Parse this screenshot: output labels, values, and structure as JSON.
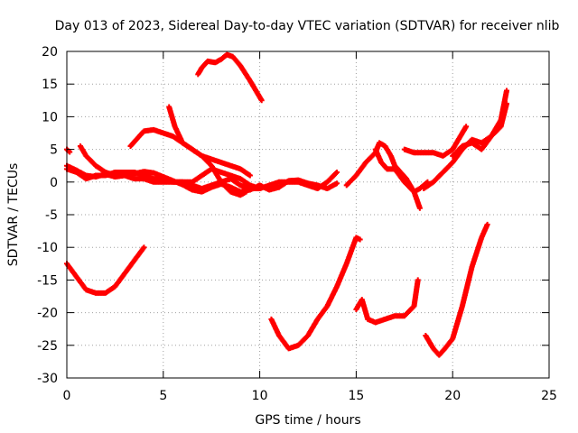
{
  "chart_data": {
    "type": "scatter",
    "title": "Day 013 of 2023, Sidereal Day-to-day VTEC variation (SDTVAR) for receiver nlib",
    "xlabel": "GPS time / hours",
    "ylabel": "SDTVAR / TECUs",
    "xlim": [
      0,
      25
    ],
    "ylim": [
      -30,
      20
    ],
    "x_ticks": [
      0,
      5,
      10,
      15,
      20,
      25
    ],
    "y_ticks": [
      -30,
      -25,
      -20,
      -15,
      -10,
      -5,
      0,
      5,
      10,
      15,
      20
    ],
    "grid": true,
    "marker": "+",
    "color": "#ff0000",
    "series": [
      {
        "x": [
          0.0,
          0.5,
          1.0,
          1.5,
          2.0,
          2.5,
          3.0,
          3.5,
          4.0,
          4.5,
          5.0,
          5.5,
          6.0,
          6.5,
          7.0,
          7.5,
          8.0,
          8.5,
          9.0,
          9.5,
          10.0,
          10.5,
          11.0,
          11.5,
          12.0,
          12.5,
          13.0,
          13.5,
          14.0
        ],
        "y": [
          2.0,
          1.5,
          0.5,
          1.0,
          1.0,
          1.5,
          1.5,
          1.5,
          1.0,
          0.5,
          0.5,
          0.0,
          0.0,
          -0.5,
          -1.0,
          -0.5,
          0.0,
          0.5,
          -0.5,
          -1.0,
          -1.0,
          -0.5,
          0.0,
          0.0,
          0.0,
          -0.5,
          -1.0,
          0.0,
          1.5
        ]
      },
      {
        "x": [
          0.0,
          0.5,
          1.0,
          1.5,
          2.0,
          2.5,
          3.0,
          3.5,
          4.0,
          4.5,
          5.0,
          5.5,
          6.0,
          6.5,
          7.0,
          7.5,
          8.0,
          8.5,
          9.0,
          9.5,
          10.0,
          10.5,
          11.0,
          11.5,
          12.0,
          12.5,
          13.0,
          13.5,
          14.0
        ],
        "y": [
          2.5,
          1.8,
          1.0,
          0.8,
          1.2,
          0.8,
          1.0,
          1.3,
          1.6,
          1.4,
          0.8,
          0.2,
          -0.4,
          -1.2,
          -1.5,
          -0.8,
          -0.3,
          -0.8,
          -1.5,
          -1.2,
          -0.5,
          -1.2,
          -0.8,
          0.2,
          0.3,
          -0.2,
          -0.5,
          -1.0,
          -0.2
        ]
      },
      {
        "x": [
          0.0,
          0.15
        ],
        "y": [
          5.0,
          4.6
        ]
      },
      {
        "x": [
          0.7,
          1.0,
          1.5,
          2.0,
          2.5,
          3.0,
          3.5,
          4.0,
          4.5,
          5.0,
          5.5,
          6.0,
          6.5,
          7.0,
          7.5,
          8.0,
          8.5,
          9.0,
          9.5,
          10.0
        ],
        "y": [
          5.5,
          4.0,
          2.5,
          1.5,
          1.0,
          1.0,
          0.5,
          0.5,
          0.0,
          0.0,
          0.0,
          0.0,
          0.0,
          1.0,
          2.0,
          1.5,
          1.0,
          0.5,
          -0.5,
          -1.0
        ]
      },
      {
        "x": [
          3.3,
          3.6,
          4.0,
          4.5,
          5.0,
          5.5,
          6.0,
          6.5,
          7.0,
          7.5,
          8.0,
          8.5,
          9.0,
          9.5
        ],
        "y": [
          5.5,
          6.5,
          7.8,
          8.0,
          7.5,
          7.0,
          6.0,
          5.0,
          4.0,
          3.5,
          3.0,
          2.5,
          2.0,
          1.0
        ]
      },
      {
        "x": [
          5.3,
          5.6,
          6.0,
          6.5,
          7.0,
          7.5,
          8.0,
          8.5,
          9.0,
          9.3
        ],
        "y": [
          11.5,
          8.5,
          6.0,
          5.0,
          4.0,
          2.5,
          0.0,
          -1.5,
          -2.0,
          -1.5
        ]
      },
      {
        "x": [
          6.8,
          7.0,
          7.3,
          7.7,
          8.0,
          8.3,
          8.6,
          9.0,
          9.5,
          10.0,
          10.1
        ],
        "y": [
          16.5,
          17.5,
          18.5,
          18.3,
          18.8,
          19.5,
          19.2,
          17.8,
          15.5,
          13.0,
          12.5
        ]
      },
      {
        "x": [
          0.0,
          0.5,
          1.0,
          1.5,
          2.0,
          2.5,
          3.0,
          3.5,
          4.0
        ],
        "y": [
          -12.5,
          -14.5,
          -16.5,
          -17.0,
          -17.0,
          -16.0,
          -14.0,
          -12.0,
          -10.0
        ]
      },
      {
        "x": [
          10.6,
          11.0,
          11.5,
          12.0,
          12.5,
          13.0,
          13.5,
          14.0,
          14.5,
          15.0,
          15.2
        ],
        "y": [
          -21.0,
          -23.5,
          -25.5,
          -25.0,
          -23.5,
          -21.0,
          -19.0,
          -16.0,
          -12.5,
          -8.5,
          -8.8
        ]
      },
      {
        "x": [
          14.5,
          15.0,
          15.5,
          16.0,
          16.2,
          16.5,
          16.8,
          17.0,
          17.3,
          17.6,
          18.0,
          18.3,
          18.7
        ],
        "y": [
          -0.5,
          1.0,
          3.0,
          4.5,
          6.0,
          5.5,
          4.0,
          2.5,
          1.5,
          0.5,
          -1.5,
          -1.0,
          0.0
        ]
      },
      {
        "x": [
          16.0,
          16.3,
          16.6,
          17.0,
          17.5,
          18.0,
          18.3
        ],
        "y": [
          5.0,
          3.0,
          2.0,
          2.0,
          0.0,
          -1.5,
          -4.0
        ]
      },
      {
        "x": [
          15.0,
          15.3,
          15.6,
          16.0,
          16.5,
          17.0,
          17.5,
          18.0,
          18.2
        ],
        "y": [
          -19.5,
          -18.0,
          -21.0,
          -21.5,
          -21.0,
          -20.5,
          -20.5,
          -19.0,
          -15.0
        ]
      },
      {
        "x": [
          17.5,
          18.0,
          18.5,
          19.0,
          19.5,
          20.0,
          20.5,
          20.7
        ],
        "y": [
          5.0,
          4.5,
          4.5,
          4.5,
          4.0,
          5.0,
          7.5,
          8.5
        ]
      },
      {
        "x": [
          18.5,
          19.0,
          19.5,
          20.0,
          20.5,
          21.0,
          21.5,
          22.0,
          22.5,
          22.8
        ],
        "y": [
          -1.0,
          0.0,
          1.5,
          3.0,
          5.0,
          6.5,
          6.0,
          7.0,
          9.5,
          14.0
        ]
      },
      {
        "x": [
          20.0,
          20.5,
          21.0,
          21.5,
          22.0,
          22.5,
          22.8
        ],
        "y": [
          4.0,
          5.5,
          6.0,
          5.0,
          7.0,
          8.5,
          12.0
        ]
      },
      {
        "x": [
          18.6,
          19.0,
          19.3,
          19.6,
          20.0,
          20.5,
          21.0,
          21.5,
          21.8
        ],
        "y": [
          -23.5,
          -25.5,
          -26.5,
          -25.5,
          -24.0,
          -19.0,
          -13.0,
          -8.5,
          -6.5
        ]
      }
    ]
  }
}
